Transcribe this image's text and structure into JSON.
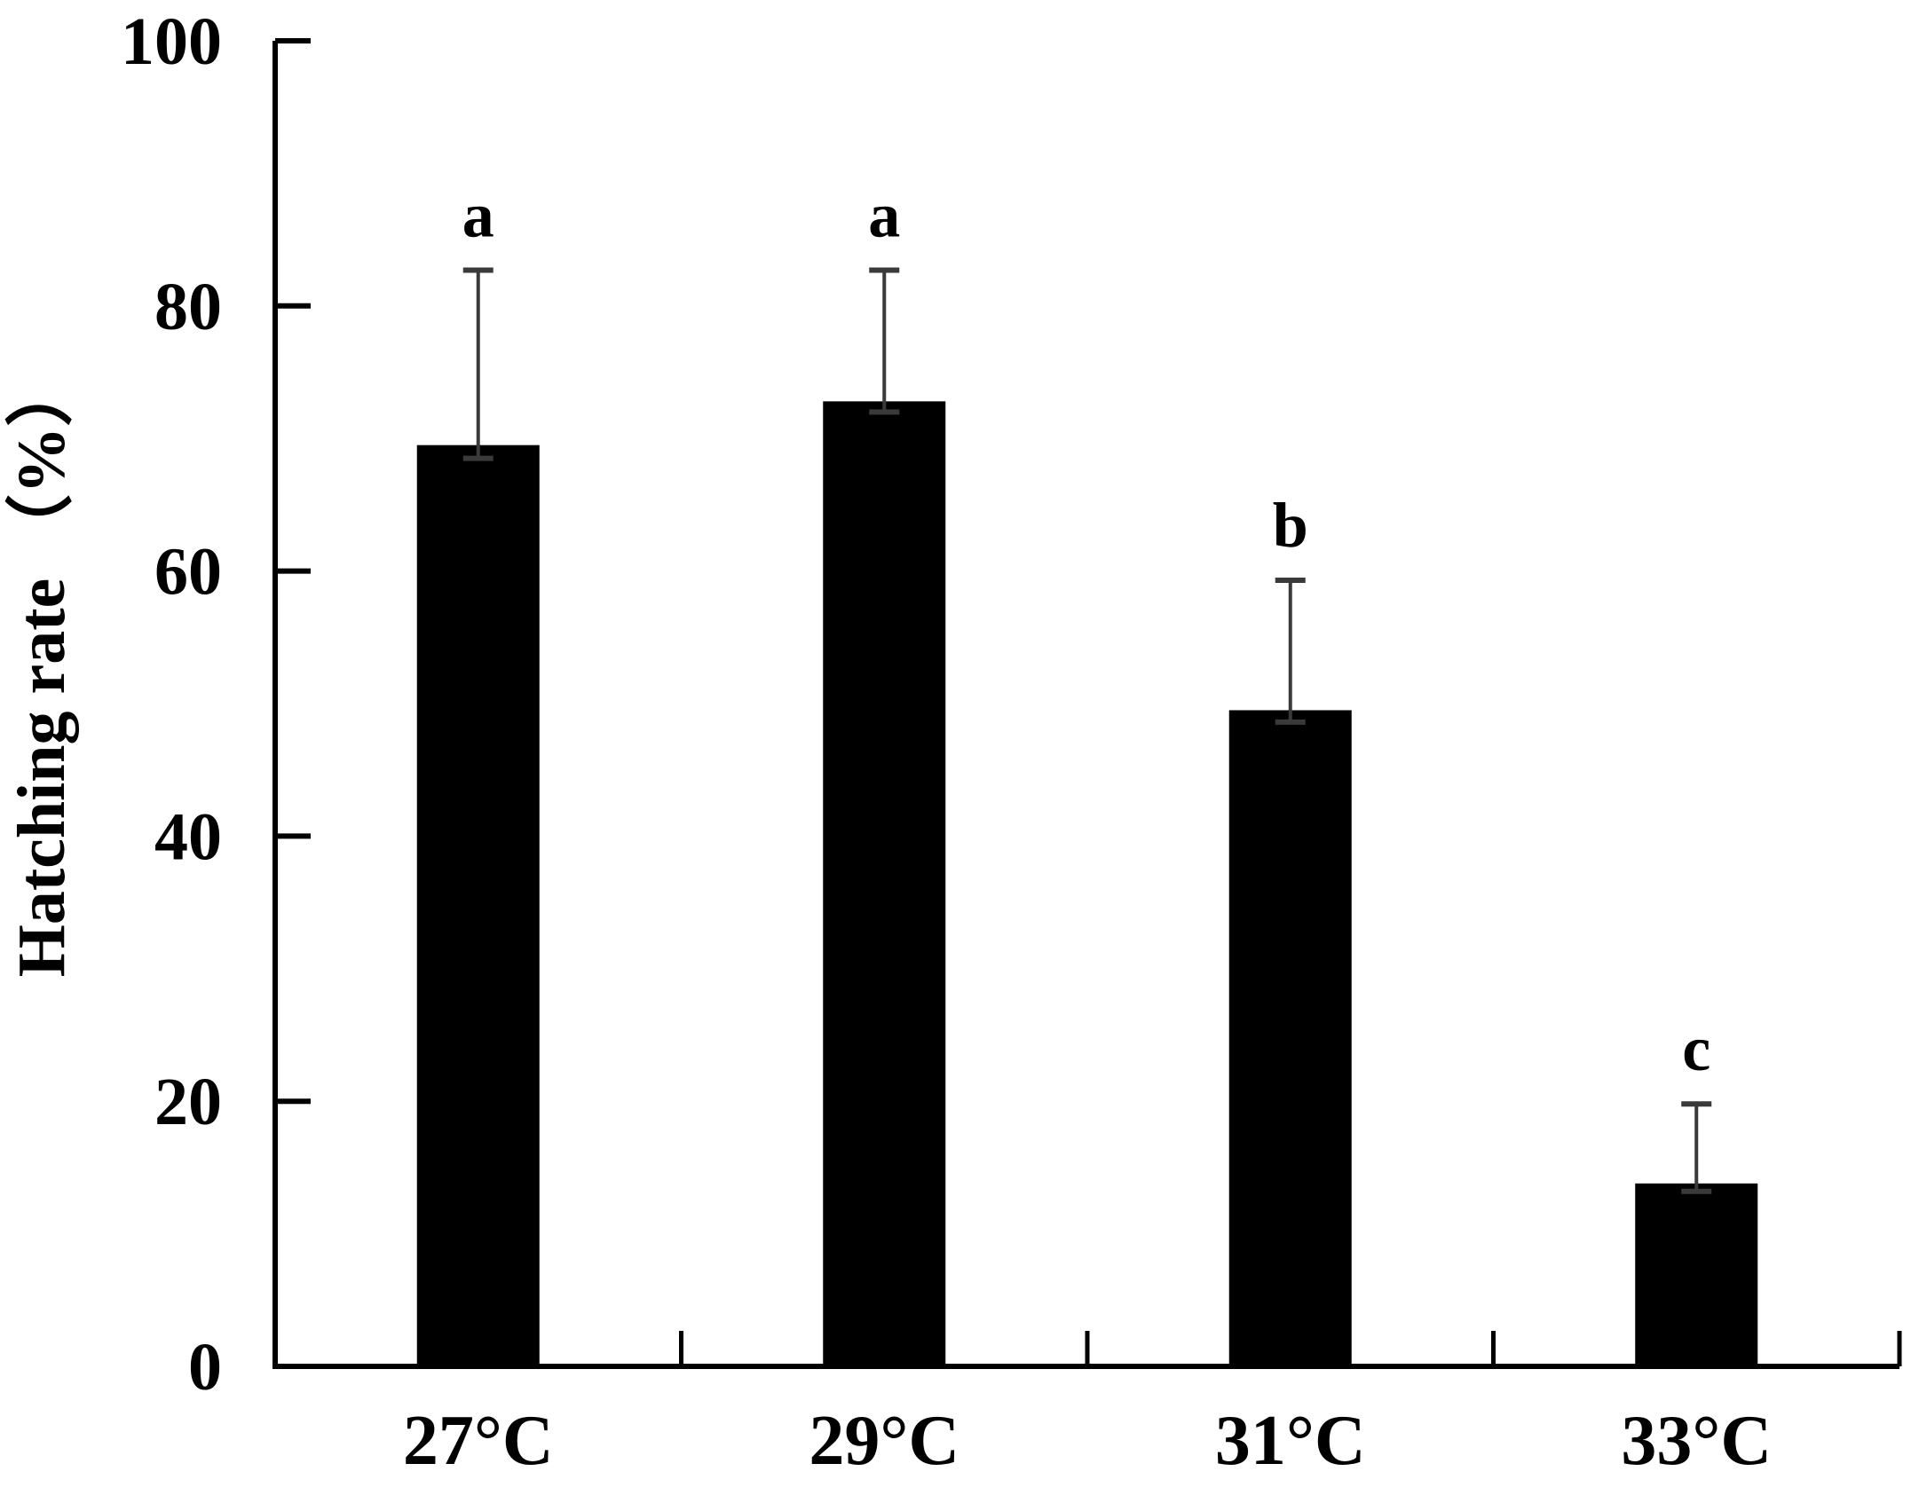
{
  "chart_data": {
    "type": "bar",
    "title": "",
    "xlabel": "",
    "ylabel": "Hatching rate （%）",
    "ylim": [
      0,
      100
    ],
    "yticks": [
      0,
      20,
      40,
      60,
      80,
      100
    ],
    "ytick_labels": [
      "0",
      "20",
      "40",
      "60",
      "80",
      "100"
    ],
    "categories": [
      "27°C",
      "29°C",
      "31°C",
      "33°C"
    ],
    "series": [
      {
        "values": [
          69.5,
          72.8,
          49.5,
          13.8
        ],
        "error_upper": [
          82.7,
          82.7,
          59.3,
          19.8
        ],
        "error_lower": [
          68.5,
          72.0,
          48.6,
          13.2
        ],
        "significance": [
          "a",
          "a",
          "b",
          "c"
        ]
      }
    ],
    "bar_color": "#000000",
    "error_bar_color": "#3a3a3a",
    "grid": false,
    "legend": "none"
  }
}
